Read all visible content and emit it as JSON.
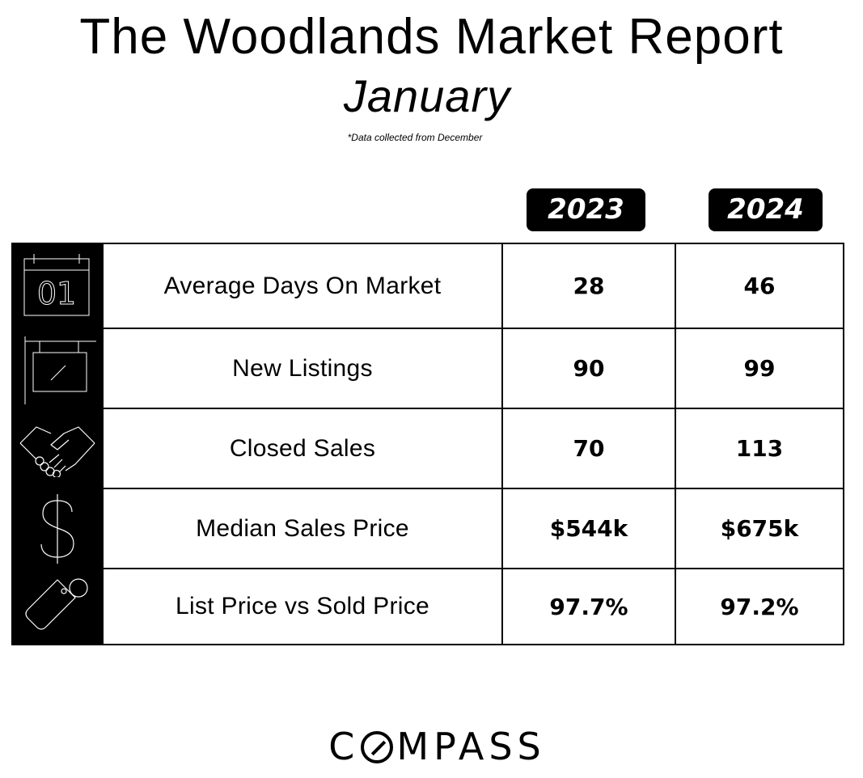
{
  "header": {
    "title": "The Woodlands Market Report",
    "subtitle": "January",
    "note": "*Data collected from December"
  },
  "years": {
    "left": "2023",
    "right": "2024"
  },
  "rows": [
    {
      "icon": "calendar-icon",
      "label": "Average Days On Market",
      "v2023": "28",
      "v2024": "46"
    },
    {
      "icon": "hanging-sign-icon",
      "label": "New Listings",
      "v2023": "90",
      "v2024": "99"
    },
    {
      "icon": "handshake-icon",
      "label": "Closed Sales",
      "v2023": "70",
      "v2024": "113"
    },
    {
      "icon": "dollar-icon",
      "label": "Median Sales Price",
      "v2023": "$544k",
      "v2024": "$675k"
    },
    {
      "icon": "price-tag-icon",
      "label": "List Price vs Sold Price",
      "v2023": "97.7%",
      "v2024": "97.2%"
    }
  ],
  "logo": {
    "before": "C",
    "after": "MPASS"
  },
  "colors": {
    "text": "#000000",
    "background": "#ffffff",
    "badge": "#000000",
    "badge_text": "#ffffff"
  }
}
